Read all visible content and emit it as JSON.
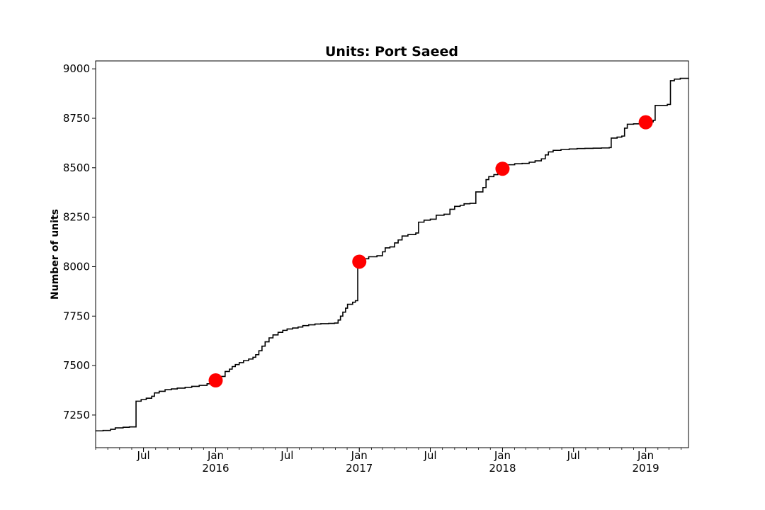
{
  "chart_data": {
    "type": "line",
    "title": "Units: Port Saeed",
    "xlabel": "",
    "ylabel": "Number of units",
    "xlim": [
      "2015-03-01",
      "2019-04-20"
    ],
    "ylim": [
      7085,
      9040
    ],
    "grid": false,
    "yticks": [
      7250,
      7500,
      7750,
      8000,
      8250,
      8500,
      8750,
      9000
    ],
    "xticks": [
      {
        "date": "2015-07-01",
        "label": "Jul",
        "sublabel": ""
      },
      {
        "date": "2016-01-01",
        "label": "Jan",
        "sublabel": "2016"
      },
      {
        "date": "2016-07-01",
        "label": "Jul",
        "sublabel": ""
      },
      {
        "date": "2017-01-01",
        "label": "Jan",
        "sublabel": "2017"
      },
      {
        "date": "2017-07-01",
        "label": "Jul",
        "sublabel": ""
      },
      {
        "date": "2018-01-01",
        "label": "Jan",
        "sublabel": "2018"
      },
      {
        "date": "2018-07-01",
        "label": "Jul",
        "sublabel": ""
      },
      {
        "date": "2019-01-01",
        "label": "Jan",
        "sublabel": "2019"
      }
    ],
    "series": [
      {
        "name": "",
        "style": "step",
        "color": "#000000",
        "points": [
          [
            "2015-03-01",
            7170
          ],
          [
            "2015-03-20",
            7172
          ],
          [
            "2015-04-08",
            7178
          ],
          [
            "2015-04-20",
            7185
          ],
          [
            "2015-05-10",
            7188
          ],
          [
            "2015-05-26",
            7190
          ],
          [
            "2015-06-12",
            7320
          ],
          [
            "2015-06-25",
            7328
          ],
          [
            "2015-07-08",
            7335
          ],
          [
            "2015-07-22",
            7345
          ],
          [
            "2015-07-29",
            7362
          ],
          [
            "2015-08-10",
            7370
          ],
          [
            "2015-08-25",
            7378
          ],
          [
            "2015-09-10",
            7382
          ],
          [
            "2015-09-25",
            7386
          ],
          [
            "2015-10-15",
            7390
          ],
          [
            "2015-11-01",
            7395
          ],
          [
            "2015-11-20",
            7400
          ],
          [
            "2015-12-10",
            7408
          ],
          [
            "2015-12-28",
            7415
          ],
          [
            "2016-01-06",
            7430
          ],
          [
            "2016-01-15",
            7445
          ],
          [
            "2016-01-25",
            7470
          ],
          [
            "2016-02-05",
            7482
          ],
          [
            "2016-02-12",
            7495
          ],
          [
            "2016-02-20",
            7505
          ],
          [
            "2016-03-01",
            7515
          ],
          [
            "2016-03-12",
            7525
          ],
          [
            "2016-03-25",
            7533
          ],
          [
            "2016-04-05",
            7542
          ],
          [
            "2016-04-12",
            7555
          ],
          [
            "2016-04-20",
            7575
          ],
          [
            "2016-04-28",
            7598
          ],
          [
            "2016-05-06",
            7620
          ],
          [
            "2016-05-16",
            7640
          ],
          [
            "2016-05-26",
            7655
          ],
          [
            "2016-06-08",
            7668
          ],
          [
            "2016-06-20",
            7678
          ],
          [
            "2016-07-01",
            7685
          ],
          [
            "2016-07-15",
            7690
          ],
          [
            "2016-07-29",
            7695
          ],
          [
            "2016-08-10",
            7702
          ],
          [
            "2016-08-25",
            7706
          ],
          [
            "2016-09-10",
            7710
          ],
          [
            "2016-09-25",
            7712
          ],
          [
            "2016-10-15",
            7713
          ],
          [
            "2016-10-30",
            7715
          ],
          [
            "2016-11-08",
            7730
          ],
          [
            "2016-11-14",
            7750
          ],
          [
            "2016-11-20",
            7770
          ],
          [
            "2016-11-27",
            7790
          ],
          [
            "2016-12-02",
            7810
          ],
          [
            "2016-12-15",
            7820
          ],
          [
            "2016-12-22",
            7828
          ],
          [
            "2016-12-28",
            8025
          ],
          [
            "2017-01-10",
            8040
          ],
          [
            "2017-01-25",
            8050
          ],
          [
            "2017-02-15",
            8055
          ],
          [
            "2017-03-01",
            8075
          ],
          [
            "2017-03-08",
            8095
          ],
          [
            "2017-03-20",
            8100
          ],
          [
            "2017-04-01",
            8120
          ],
          [
            "2017-04-10",
            8135
          ],
          [
            "2017-04-20",
            8155
          ],
          [
            "2017-05-05",
            8162
          ],
          [
            "2017-05-25",
            8170
          ],
          [
            "2017-06-01",
            8225
          ],
          [
            "2017-06-15",
            8235
          ],
          [
            "2017-07-01",
            8240
          ],
          [
            "2017-07-16",
            8260
          ],
          [
            "2017-08-05",
            8265
          ],
          [
            "2017-08-20",
            8290
          ],
          [
            "2017-09-01",
            8305
          ],
          [
            "2017-09-15",
            8310
          ],
          [
            "2017-09-25",
            8318
          ],
          [
            "2017-10-10",
            8320
          ],
          [
            "2017-10-25",
            8378
          ],
          [
            "2017-11-12",
            8400
          ],
          [
            "2017-11-20",
            8440
          ],
          [
            "2017-11-27",
            8455
          ],
          [
            "2017-12-10",
            8465
          ],
          [
            "2017-12-20",
            8490
          ],
          [
            "2018-01-03",
            8500
          ],
          [
            "2018-01-15",
            8515
          ],
          [
            "2018-02-01",
            8520
          ],
          [
            "2018-02-20",
            8522
          ],
          [
            "2018-03-10",
            8528
          ],
          [
            "2018-03-25",
            8535
          ],
          [
            "2018-04-10",
            8545
          ],
          [
            "2018-04-20",
            8565
          ],
          [
            "2018-04-28",
            8580
          ],
          [
            "2018-05-10",
            8588
          ],
          [
            "2018-05-30",
            8592
          ],
          [
            "2018-06-20",
            8595
          ],
          [
            "2018-07-10",
            8597
          ],
          [
            "2018-07-30",
            8598
          ],
          [
            "2018-08-20",
            8599
          ],
          [
            "2018-09-10",
            8600
          ],
          [
            "2018-09-30",
            8602
          ],
          [
            "2018-10-05",
            8650
          ],
          [
            "2018-10-20",
            8655
          ],
          [
            "2018-11-01",
            8660
          ],
          [
            "2018-11-08",
            8700
          ],
          [
            "2018-11-15",
            8720
          ],
          [
            "2018-12-01",
            8722
          ],
          [
            "2018-12-20",
            8730
          ],
          [
            "2019-01-10",
            8732
          ],
          [
            "2019-01-20",
            8740
          ],
          [
            "2019-01-25",
            8815
          ],
          [
            "2019-02-25",
            8820
          ],
          [
            "2019-03-05",
            8940
          ],
          [
            "2019-03-15",
            8948
          ],
          [
            "2019-03-30",
            8952
          ],
          [
            "2019-04-20",
            8955
          ]
        ]
      }
    ],
    "markers": [
      {
        "date": "2016-01-01",
        "value": 7425,
        "color": "#ff0000"
      },
      {
        "date": "2017-01-01",
        "value": 8025,
        "color": "#ff0000"
      },
      {
        "date": "2018-01-01",
        "value": 8495,
        "color": "#ff0000"
      },
      {
        "date": "2019-01-01",
        "value": 8730,
        "color": "#ff0000"
      }
    ]
  }
}
